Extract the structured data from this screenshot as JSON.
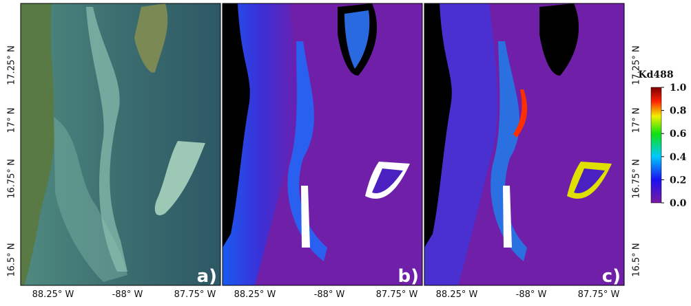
{
  "panels": [
    {
      "label": "a)"
    },
    {
      "label": "b)"
    },
    {
      "label": "c)"
    }
  ],
  "x_tick_labels": [
    "88.25° W",
    "-88° W",
    "87.75° W"
  ],
  "y_tick_labels": [
    "17.25° N",
    "17° N",
    "16.75° N",
    "16.5° N"
  ],
  "colorbar": {
    "title": "Kd488",
    "ticks": [
      {
        "value": 1.0,
        "label": "1.0"
      },
      0.8,
      0.6,
      0.4,
      0.2,
      {
        "value": 0.0,
        "label": "0.0"
      }
    ]
  }
}
